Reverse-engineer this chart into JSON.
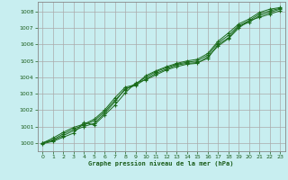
{
  "bg_color": "#c8eef0",
  "plot_bg_color": "#c8eef0",
  "grid_color": "#aaaaaa",
  "line_color": "#1a6b1a",
  "text_color": "#1a5c1a",
  "xlabel": "Graphe pression niveau de la mer (hPa)",
  "xlim_min": -0.5,
  "xlim_max": 23.5,
  "ylim_min": 999.5,
  "ylim_max": 1008.6,
  "yticks": [
    1000,
    1001,
    1002,
    1003,
    1004,
    1005,
    1006,
    1007,
    1008
  ],
  "xticks": [
    0,
    1,
    2,
    3,
    4,
    5,
    6,
    7,
    8,
    9,
    10,
    11,
    12,
    13,
    14,
    15,
    16,
    17,
    18,
    19,
    20,
    21,
    22,
    23
  ],
  "series": [
    [
      1000.0,
      1000.15,
      1000.45,
      1000.75,
      1001.0,
      1001.2,
      1001.8,
      1002.5,
      1003.3,
      1003.5,
      1003.9,
      1004.25,
      1004.5,
      1004.75,
      1004.85,
      1004.9,
      1005.15,
      1006.0,
      1006.4,
      1007.1,
      1007.35,
      1007.75,
      1007.95,
      1008.15
    ],
    [
      1000.0,
      1000.3,
      1000.65,
      1000.95,
      1001.15,
      1001.45,
      1002.0,
      1002.75,
      1003.4,
      1003.55,
      1004.1,
      1004.4,
      1004.65,
      1004.85,
      1005.0,
      1005.1,
      1005.45,
      1006.2,
      1006.7,
      1007.25,
      1007.55,
      1007.95,
      1008.15,
      1008.25
    ],
    [
      999.95,
      1000.1,
      1000.35,
      1000.6,
      1001.25,
      1001.1,
      1001.7,
      1002.3,
      1003.05,
      1003.65,
      1003.85,
      1004.15,
      1004.45,
      1004.65,
      1004.8,
      1004.85,
      1005.25,
      1005.9,
      1006.35,
      1007.0,
      1007.45,
      1007.65,
      1007.85,
      1008.05
    ],
    [
      1000.0,
      1000.2,
      1000.55,
      1000.85,
      1001.1,
      1001.35,
      1001.9,
      1002.6,
      1003.25,
      1003.6,
      1004.0,
      1004.35,
      1004.58,
      1004.8,
      1004.92,
      1005.0,
      1005.35,
      1006.1,
      1006.55,
      1007.15,
      1007.45,
      1007.85,
      1008.05,
      1008.2
    ]
  ]
}
